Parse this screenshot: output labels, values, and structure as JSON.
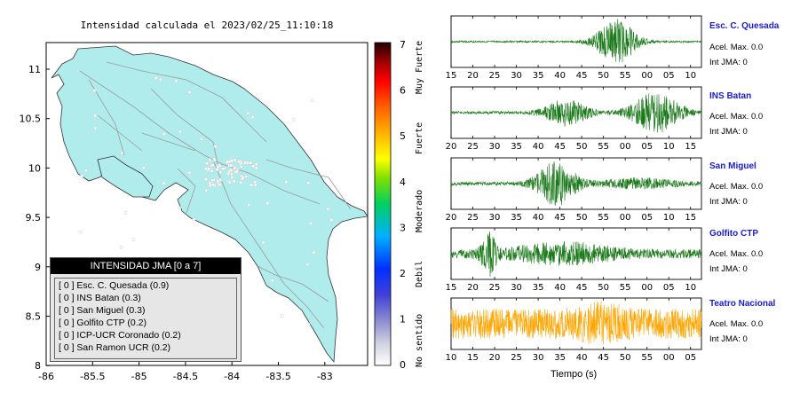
{
  "map": {
    "title": "Intensidad calculada el 2023/02/25_11:10:18",
    "x_ticks": [
      "-86",
      "-85.5",
      "-85",
      "-84.5",
      "-84",
      "-83.5",
      "-83"
    ],
    "y_ticks": [
      "11",
      "10.5",
      "10",
      "9.5",
      "9",
      "8.5",
      "8"
    ],
    "land_color": "#b1ecec",
    "sea_color": "#ffffff"
  },
  "legend": {
    "title": "INTENSIDAD JMA [0 a 7]",
    "items": [
      "[ 0 ]  Esc. C. Quesada (0.9)",
      "[ 0 ]  INS Batan (0.3)",
      "[ 0 ]  San Miguel (0.3)",
      "[ 0 ]  Golfito CTP (0.2)",
      "[ 0 ]  ICP-UCR Coronado (0.2)",
      "[ 0 ]  San Ramon UCR (0.2)"
    ]
  },
  "scale": {
    "numbers": [
      "7",
      "6",
      "5",
      "4",
      "3",
      "2",
      "1",
      "0"
    ],
    "labels": [
      "Muy Fuerte",
      "Fuerte",
      "Moderado",
      "Debil",
      "No sentido"
    ]
  },
  "stations": [
    {
      "name": "Esc. C. Quesada",
      "acel": "Acel. Max. 0.0",
      "jma": "Int JMA: 0",
      "ticks": [
        "15",
        "20",
        "25",
        "30",
        "35",
        "40",
        "45",
        "50",
        "55",
        "00",
        "05",
        "10"
      ],
      "color": "#1a7a1a"
    },
    {
      "name": "INS Batan",
      "acel": "Acel. Max. 0.0",
      "jma": "Int JMA: 0",
      "ticks": [
        "20",
        "25",
        "30",
        "35",
        "40",
        "45",
        "50",
        "55",
        "00",
        "05",
        "10",
        "15"
      ],
      "color": "#1a7a1a"
    },
    {
      "name": "San Miguel",
      "acel": "Acel. Max. 0.0",
      "jma": "Int JMA: 0",
      "ticks": [
        "20",
        "25",
        "30",
        "35",
        "40",
        "45",
        "50",
        "55",
        "00",
        "05",
        "10",
        "15"
      ],
      "color": "#1a7a1a"
    },
    {
      "name": "Golfito CTP",
      "acel": "Acel. Max. 0.0",
      "jma": "Int JMA: 0",
      "ticks": [
        "15",
        "20",
        "25",
        "30",
        "35",
        "40",
        "45",
        "50",
        "55",
        "00",
        "05",
        "10"
      ],
      "color": "#1a7a1a"
    },
    {
      "name": "Teatro Nacional",
      "acel": "Acel. Max. 0.0",
      "jma": "Int JMA: 0",
      "ticks": [
        "10",
        "15",
        "20",
        "25",
        "30",
        "35",
        "40",
        "45",
        "50",
        "55",
        "00",
        "05"
      ],
      "color": "#ffa500"
    }
  ],
  "xaxis_label": "Tiempo (s)"
}
